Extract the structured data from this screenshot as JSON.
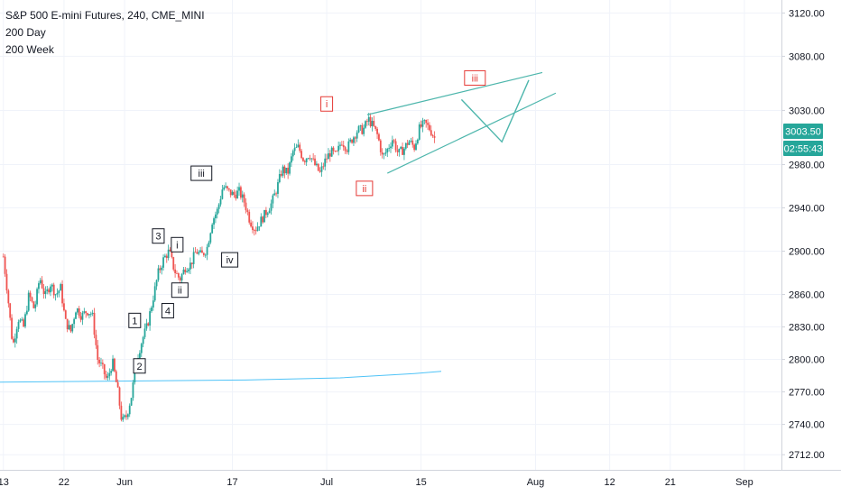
{
  "legend": {
    "symbol_line": "S&P 500 E-mini Futures, 240, CME_MINI",
    "indicator_1": "200 Day",
    "indicator_2": "200 Week"
  },
  "price_badge": {
    "value": "3003.50",
    "countdown": "02:55:43",
    "color": "#26a69a"
  },
  "chart_data": {
    "type": "candlestick",
    "title": "S&P 500 E-mini Futures, 240, CME_MINI",
    "y_ticks": [
      2712.0,
      2740.0,
      2770.0,
      2800.0,
      2830.0,
      2860.0,
      2900.0,
      2940.0,
      2980.0,
      3030.0,
      3080.0,
      3120.0
    ],
    "y_tick_labels": [
      "2712.00",
      "2740.00",
      "2770.00",
      "2800.00",
      "2830.00",
      "2860.00",
      "2900.00",
      "2940.00",
      "2980.00",
      "3030.00",
      "3080.00",
      "3120.00"
    ],
    "x_tick_labels": [
      "13",
      "22",
      "Jun",
      "17",
      "Jul",
      "15",
      "Aug",
      "12",
      "21",
      "Sep"
    ],
    "x_tick_days": [
      -18,
      -9,
      0,
      16,
      30,
      44,
      61,
      72,
      81,
      92
    ],
    "ylim": [
      2698,
      3132
    ],
    "xlim_days": [
      -18.5,
      97.5
    ],
    "grid": true,
    "up_color": "#26a69a",
    "down_color": "#ef5350",
    "price_path": [
      [
        -18,
        2895
      ],
      [
        -17.4,
        2862
      ],
      [
        -16.6,
        2812
      ],
      [
        -15.8,
        2838
      ],
      [
        -15.0,
        2830
      ],
      [
        -14.2,
        2860
      ],
      [
        -13.4,
        2846
      ],
      [
        -12.6,
        2876
      ],
      [
        -11.8,
        2858
      ],
      [
        -11.0,
        2870
      ],
      [
        -10.2,
        2860
      ],
      [
        -9.5,
        2866
      ],
      [
        -8.8,
        2835
      ],
      [
        -8.0,
        2826
      ],
      [
        -7.2,
        2848
      ],
      [
        -6.4,
        2840
      ],
      [
        -5.6,
        2845
      ],
      [
        -4.8,
        2842
      ],
      [
        -4.0,
        2800
      ],
      [
        -3.3,
        2792
      ],
      [
        -2.6,
        2780
      ],
      [
        -1.8,
        2798
      ],
      [
        -1.0,
        2770
      ],
      [
        -0.4,
        2742
      ],
      [
        0.3,
        2748
      ],
      [
        1.0,
        2766
      ],
      [
        1.8,
        2800
      ],
      [
        2.6,
        2818
      ],
      [
        3.4,
        2832
      ],
      [
        4.2,
        2856
      ],
      [
        5.0,
        2880
      ],
      [
        5.8,
        2893
      ],
      [
        6.6,
        2900
      ],
      [
        7.4,
        2882
      ],
      [
        8.2,
        2874
      ],
      [
        9.0,
        2885
      ],
      [
        9.8,
        2888
      ],
      [
        10.6,
        2900
      ],
      [
        11.4,
        2896
      ],
      [
        12.2,
        2902
      ],
      [
        13.0,
        2928
      ],
      [
        13.8,
        2938
      ],
      [
        14.6,
        2960
      ],
      [
        15.4,
        2955
      ],
      [
        16.2,
        2952
      ],
      [
        17.0,
        2955
      ],
      [
        17.8,
        2945
      ],
      [
        18.6,
        2928
      ],
      [
        19.4,
        2920
      ],
      [
        20.2,
        2928
      ],
      [
        21.0,
        2936
      ],
      [
        21.8,
        2944
      ],
      [
        22.6,
        2958
      ],
      [
        23.4,
        2976
      ],
      [
        24.2,
        2972
      ],
      [
        25.0,
        2992
      ],
      [
        25.8,
        2996
      ],
      [
        26.6,
        2984
      ],
      [
        27.4,
        2990
      ],
      [
        28.2,
        2980
      ],
      [
        29.0,
        2972
      ],
      [
        29.8,
        2984
      ],
      [
        30.6,
        2992
      ],
      [
        31.4,
        2988
      ],
      [
        32.2,
        3002
      ],
      [
        33.0,
        2995
      ],
      [
        33.8,
        3004
      ],
      [
        34.6,
        3012
      ],
      [
        35.4,
        3012
      ],
      [
        36.2,
        3022
      ],
      [
        37.0,
        3014
      ],
      [
        37.6,
        3006
      ],
      [
        38.3,
        2986
      ],
      [
        39.0,
        2994
      ],
      [
        39.8,
        3004
      ],
      [
        40.6,
        2990
      ],
      [
        41.4,
        2994
      ],
      [
        42.2,
        3002
      ],
      [
        43.0,
        2996
      ],
      [
        43.8,
        3014
      ],
      [
        44.6,
        3018
      ],
      [
        45.4,
        3012
      ],
      [
        46.2,
        3002
      ]
    ],
    "ma_200_day": {
      "name": "200 Day",
      "color": "#4fc3f7",
      "points": [
        [
          -18.5,
          2779
        ],
        [
          -1,
          2780
        ],
        [
          18,
          2781
        ],
        [
          32,
          2783
        ],
        [
          43,
          2787
        ],
        [
          47,
          2789
        ]
      ]
    },
    "trend_lines": [
      {
        "color": "#4db6ac",
        "points": [
          [
            36,
            3026
          ],
          [
            62,
            3065
          ]
        ]
      },
      {
        "color": "#4db6ac",
        "points": [
          [
            39,
            2972
          ],
          [
            64,
            3046
          ]
        ]
      }
    ],
    "projection_path": {
      "color": "#4db6ac",
      "points": [
        [
          50,
          3040
        ],
        [
          56,
          3001
        ],
        [
          60,
          3058
        ]
      ]
    },
    "wave_labels": [
      {
        "text": "1",
        "day": 1.5,
        "price": 2836,
        "color": "#131722"
      },
      {
        "text": "2",
        "day": 2.2,
        "price": 2794,
        "color": "#131722"
      },
      {
        "text": "3",
        "day": 5.0,
        "price": 2914,
        "color": "#131722"
      },
      {
        "text": "4",
        "day": 6.4,
        "price": 2845,
        "color": "#131722"
      },
      {
        "text": "i",
        "day": 7.8,
        "price": 2906,
        "color": "#131722"
      },
      {
        "text": "ii",
        "day": 8.2,
        "price": 2864,
        "color": "#131722"
      },
      {
        "text": "iii",
        "day": 11.4,
        "price": 2972,
        "color": "#131722"
      },
      {
        "text": "iv",
        "day": 15.6,
        "price": 2892,
        "color": "#131722"
      },
      {
        "text": "i",
        "day": 30.0,
        "price": 3036,
        "color": "#e53935"
      },
      {
        "text": "ii",
        "day": 35.6,
        "price": 2958,
        "color": "#e53935"
      },
      {
        "text": "iii",
        "day": 52.0,
        "price": 3060,
        "color": "#e53935"
      }
    ]
  }
}
